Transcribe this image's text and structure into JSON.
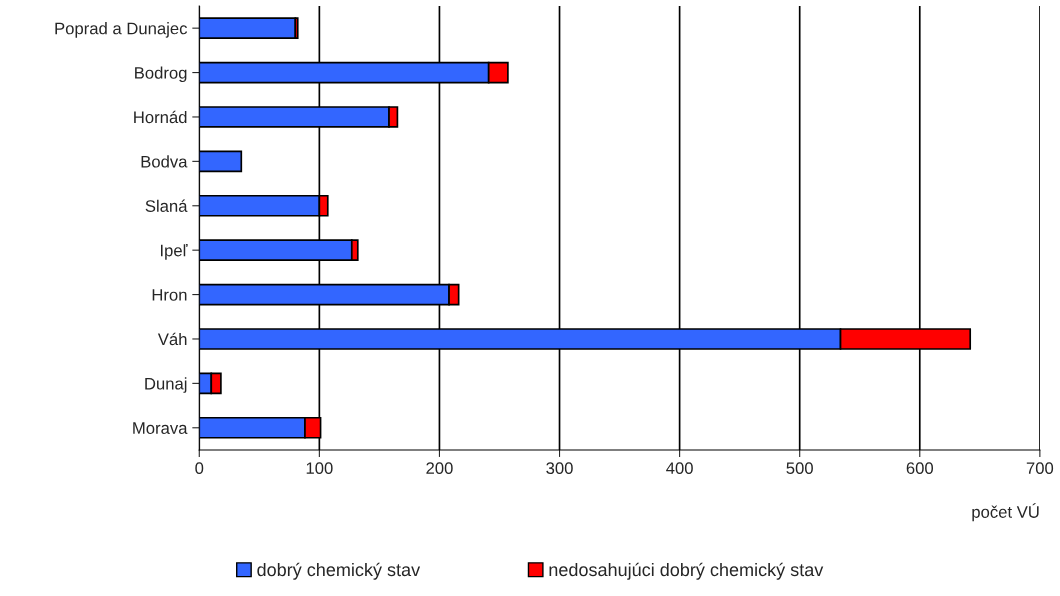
{
  "chart_data": {
    "type": "bar",
    "orientation": "horizontal",
    "stacked": true,
    "categories": [
      "Poprad a Dunajec",
      "Bodrog",
      "Hornád",
      "Bodva",
      "Slaná",
      "Ipeľ",
      "Hron",
      "Váh",
      "Dunaj",
      "Morava"
    ],
    "series": [
      {
        "name": "dobrý chemický stav",
        "color": "#3366ff",
        "values": [
          80,
          241,
          158,
          35,
          100,
          127,
          208,
          534,
          10,
          88
        ]
      },
      {
        "name": "nedosahujúci dobrý chemický stav",
        "color": "#ff0000",
        "values": [
          2,
          16,
          7,
          null,
          7,
          5,
          8,
          108,
          8,
          13
        ]
      }
    ],
    "xlabel": "počet VÚ",
    "xlim": [
      0,
      700
    ],
    "xticks": [
      0,
      100,
      200,
      300,
      400,
      500,
      600,
      700
    ],
    "grid": "x",
    "legend": "bottom"
  }
}
